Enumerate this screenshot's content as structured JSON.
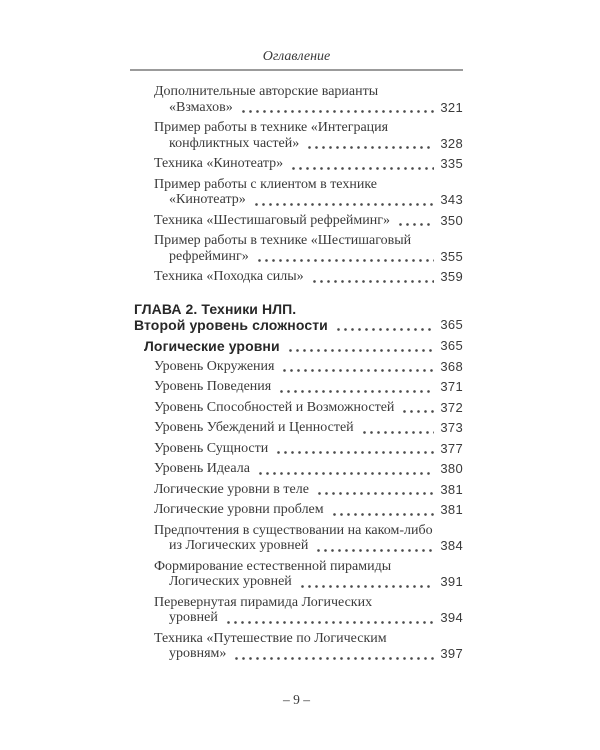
{
  "page": {
    "header": "Оглавление",
    "footer": "– 9 –"
  },
  "colors": {
    "background": "#ffffff",
    "text": "#3a3a3a",
    "heading": "#282828",
    "rule": "#9b9b9b",
    "dots": "#4a4a4a"
  },
  "toc": {
    "entries": [
      {
        "style": "normal",
        "lines": [
          "Дополнительные авторские варианты",
          "«Взмахов»"
        ],
        "page": "321"
      },
      {
        "style": "normal",
        "lines": [
          "Пример работы в технике «Интеграция",
          "конфликтных частей»"
        ],
        "page": "328"
      },
      {
        "style": "normal",
        "lines": [
          "Техника «Кинотеатр»"
        ],
        "page": "335"
      },
      {
        "style": "normal",
        "lines": [
          "Пример работы с клиентом в технике",
          "«Кинотеатр»"
        ],
        "page": "343"
      },
      {
        "style": "normal",
        "lines": [
          "Техника «Шестишаговый рефрейминг»"
        ],
        "page": "350"
      },
      {
        "style": "normal",
        "lines": [
          "Пример работы в технике «Шестишаговый",
          "рефрейминг»"
        ],
        "page": "355"
      },
      {
        "style": "normal",
        "lines": [
          "Техника «Походка силы»"
        ],
        "page": "359"
      },
      {
        "style": "chapter",
        "lines": [
          "ГЛАВА 2. Техники НЛП.",
          "Второй уровень сложности"
        ],
        "page": "365"
      },
      {
        "style": "section",
        "lines": [
          "Логические уровни"
        ],
        "page": "365"
      },
      {
        "style": "normal",
        "lines": [
          "Уровень Окружения"
        ],
        "page": "368"
      },
      {
        "style": "normal",
        "lines": [
          "Уровень Поведения"
        ],
        "page": "371"
      },
      {
        "style": "normal",
        "lines": [
          "Уровень Способностей и Возможностей"
        ],
        "page": "372"
      },
      {
        "style": "normal",
        "lines": [
          "Уровень Убеждений и Ценностей"
        ],
        "page": "373"
      },
      {
        "style": "normal",
        "lines": [
          "Уровень Сущности"
        ],
        "page": "377"
      },
      {
        "style": "normal",
        "lines": [
          "Уровень Идеала"
        ],
        "page": "380"
      },
      {
        "style": "normal",
        "lines": [
          "Логические уровни в теле"
        ],
        "page": "381"
      },
      {
        "style": "normal",
        "lines": [
          "Логические уровни проблем"
        ],
        "page": "381"
      },
      {
        "style": "normal",
        "lines": [
          "Предпочтения в существовании на каком-либо",
          "из Логических уровней"
        ],
        "page": "384"
      },
      {
        "style": "normal",
        "lines": [
          "Формирование естественной пирамиды",
          "Логических уровней"
        ],
        "page": "391"
      },
      {
        "style": "normal",
        "lines": [
          "Перевернутая пирамида Логических",
          "уровней"
        ],
        "page": "394"
      },
      {
        "style": "normal",
        "lines": [
          "Техника «Путешествие по Логическим",
          "уровням»"
        ],
        "page": "397"
      }
    ]
  }
}
